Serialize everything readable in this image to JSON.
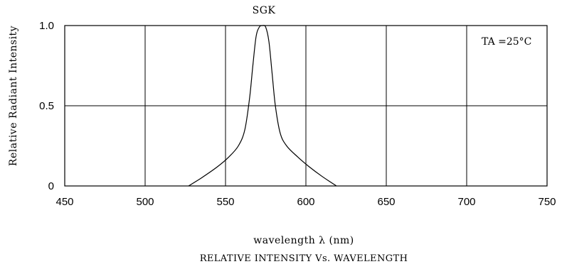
{
  "chart_data": {
    "type": "line",
    "title": "SGK",
    "xlabel": "wavelength λ (nm)",
    "ylabel": "Relative Radiant Intensity",
    "caption": "RELATIVE INTENSITY Vs. WAVELENGTH",
    "annotation": "TA =25°C",
    "xlim": [
      450,
      750
    ],
    "ylim": [
      0,
      1.0
    ],
    "x_ticks": [
      450,
      500,
      550,
      600,
      650,
      700,
      750
    ],
    "y_ticks": [
      0,
      0.5,
      1.0
    ],
    "x_tick_labels": [
      "450",
      "500",
      "550",
      "600",
      "650",
      "700",
      "750"
    ],
    "y_tick_labels": [
      "0",
      "0.5",
      "1.0"
    ],
    "grid": true,
    "series": [
      {
        "x": [
          527,
          535,
          545,
          552,
          558,
          562,
          565,
          567,
          569,
          571,
          573,
          575,
          577,
          579,
          581,
          584,
          588,
          595,
          602,
          610,
          619
        ],
        "y": [
          0.0,
          0.05,
          0.12,
          0.18,
          0.25,
          0.35,
          0.55,
          0.75,
          0.93,
          0.99,
          1.0,
          0.99,
          0.9,
          0.7,
          0.5,
          0.33,
          0.25,
          0.18,
          0.12,
          0.06,
          0.0
        ]
      }
    ]
  }
}
